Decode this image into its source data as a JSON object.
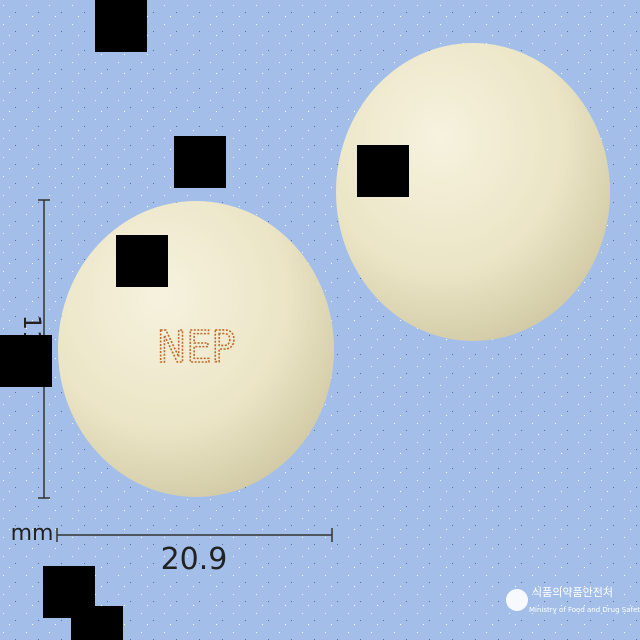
{
  "imprint": "NEP",
  "dimensions": {
    "height": "11",
    "width": "20.9",
    "unit": "mm"
  },
  "logo": {
    "korean": "식품의약품안전처",
    "english": "Ministry of Food and Drug Safety"
  }
}
